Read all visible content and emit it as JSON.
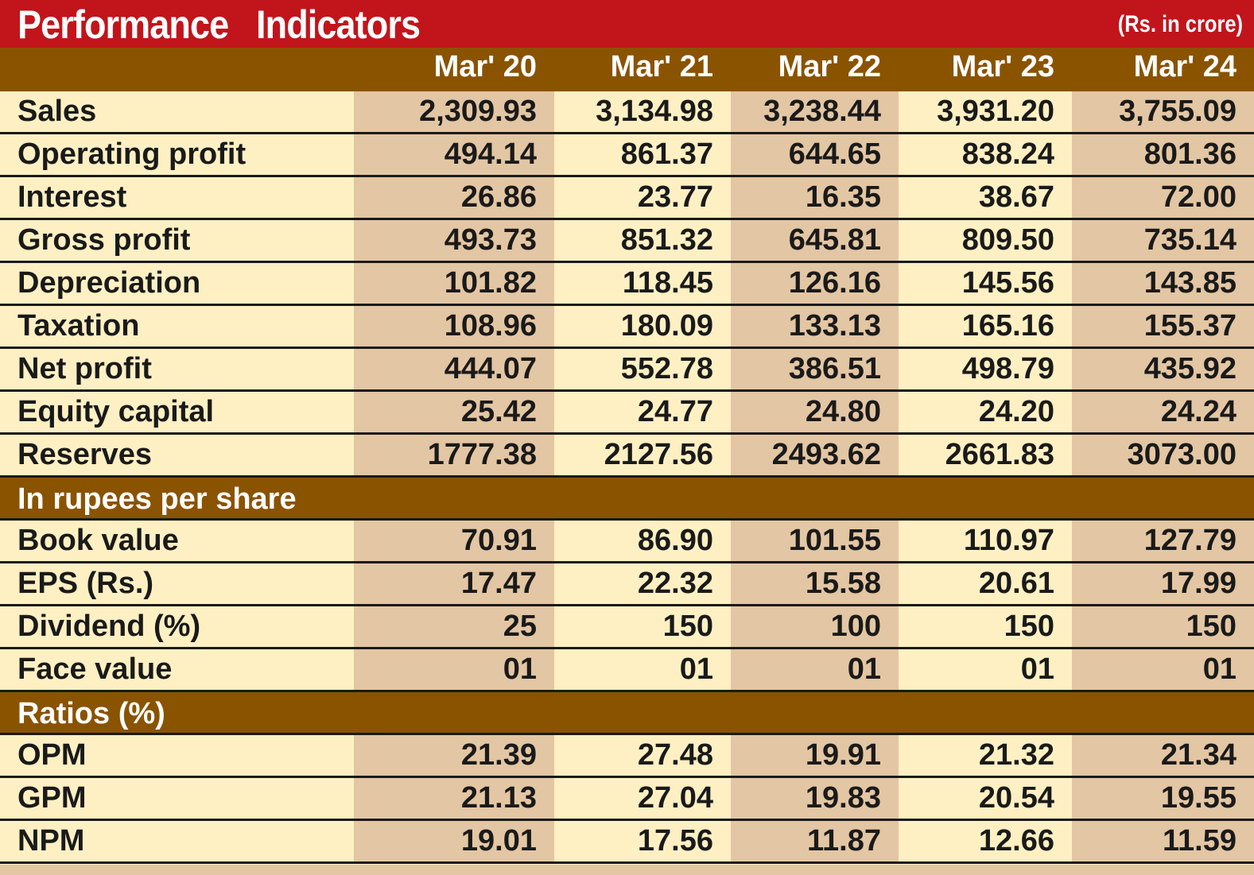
{
  "title": "Performance   Indicators",
  "unit": "(Rs. in crore)",
  "columns": [
    "Mar' 20",
    "Mar' 21",
    "Mar' 22",
    "Mar' 23",
    "Mar' 24"
  ],
  "sections": [
    {
      "heading": "",
      "rows": [
        {
          "label": "Sales",
          "values": [
            "2,309.93",
            "3,134.98",
            "3,238.44",
            "3,931.20",
            "3,755.09"
          ]
        },
        {
          "label": "Operating profit",
          "values": [
            "494.14",
            "861.37",
            "644.65",
            "838.24",
            "801.36"
          ]
        },
        {
          "label": "Interest",
          "values": [
            "26.86",
            "23.77",
            "16.35",
            "38.67",
            "72.00"
          ]
        },
        {
          "label": "Gross profit",
          "values": [
            "493.73",
            "851.32",
            "645.81",
            "809.50",
            "735.14"
          ]
        },
        {
          "label": "Depreciation",
          "values": [
            "101.82",
            "118.45",
            "126.16",
            "145.56",
            "143.85"
          ]
        },
        {
          "label": "Taxation",
          "values": [
            "108.96",
            "180.09",
            "133.13",
            "165.16",
            "155.37"
          ]
        },
        {
          "label": "Net profit",
          "values": [
            "444.07",
            "552.78",
            "386.51",
            "498.79",
            "435.92"
          ]
        },
        {
          "label": "Equity capital",
          "values": [
            "25.42",
            "24.77",
            "24.80",
            "24.20",
            "24.24"
          ]
        },
        {
          "label": "Reserves",
          "values": [
            "1777.38",
            "2127.56",
            "2493.62",
            "2661.83",
            "3073.00"
          ]
        }
      ]
    },
    {
      "heading": "In rupees per share",
      "rows": [
        {
          "label": "Book value",
          "values": [
            "70.91",
            "86.90",
            "101.55",
            "110.97",
            "127.79"
          ]
        },
        {
          "label": "EPS (Rs.)",
          "values": [
            "17.47",
            "22.32",
            "15.58",
            "20.61",
            "17.99"
          ]
        },
        {
          "label": "Dividend (%)",
          "values": [
            "25",
            "150",
            "100",
            "150",
            "150"
          ]
        },
        {
          "label": "Face  value",
          "values": [
            "01",
            "01",
            "01",
            "01",
            "01"
          ]
        }
      ]
    },
    {
      "heading": "Ratios (%)",
      "rows": [
        {
          "label": "OPM",
          "values": [
            "21.39",
            "27.48",
            "19.91",
            "21.32",
            "21.34"
          ]
        },
        {
          "label": "GPM",
          "values": [
            "21.13",
            "27.04",
            "19.83",
            "20.54",
            "19.55"
          ]
        },
        {
          "label": "NPM",
          "values": [
            "19.01",
            "17.56",
            "11.87",
            "12.66",
            "11.59"
          ]
        }
      ]
    }
  ]
}
